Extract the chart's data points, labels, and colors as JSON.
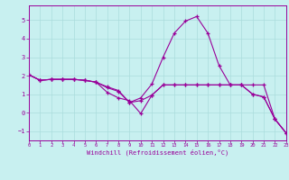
{
  "xlabel": "Windchill (Refroidissement éolien,°C)",
  "bg_color": "#c8f0f0",
  "line_color": "#990099",
  "grid_color": "#aadddd",
  "x_hours": [
    0,
    1,
    2,
    3,
    4,
    5,
    6,
    7,
    8,
    9,
    10,
    11,
    12,
    13,
    14,
    15,
    16,
    17,
    18,
    19,
    20,
    21,
    22,
    23
  ],
  "series1": [
    2.05,
    1.75,
    1.8,
    1.8,
    1.8,
    1.75,
    1.65,
    1.1,
    0.8,
    0.65,
    -0.05,
    0.95,
    1.5,
    1.5,
    1.5,
    1.5,
    1.5,
    1.5,
    1.5,
    1.5,
    1.0,
    0.85,
    -0.35,
    -1.1
  ],
  "series2": [
    2.05,
    1.75,
    1.8,
    1.8,
    1.8,
    1.75,
    1.65,
    1.4,
    1.2,
    0.55,
    0.8,
    1.55,
    3.0,
    4.3,
    4.95,
    5.2,
    4.3,
    2.55,
    1.5,
    1.5,
    1.5,
    1.5,
    -0.35,
    -1.1
  ],
  "series3": [
    2.05,
    1.75,
    1.8,
    1.8,
    1.8,
    1.75,
    1.65,
    1.35,
    1.15,
    0.55,
    0.65,
    0.95,
    1.5,
    1.5,
    1.5,
    1.5,
    1.5,
    1.5,
    1.5,
    1.5,
    1.0,
    0.85,
    -0.35,
    -1.1
  ],
  "ylim": [
    -1.5,
    5.8
  ],
  "xlim": [
    0,
    23
  ],
  "yticks": [
    -1,
    0,
    1,
    2,
    3,
    4,
    5
  ],
  "xticks": [
    0,
    1,
    2,
    3,
    4,
    5,
    6,
    7,
    8,
    9,
    10,
    11,
    12,
    13,
    14,
    15,
    16,
    17,
    18,
    19,
    20,
    21,
    22,
    23
  ]
}
